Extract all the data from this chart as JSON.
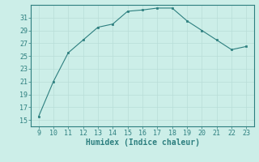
{
  "x": [
    9,
    10,
    11,
    12,
    13,
    14,
    15,
    16,
    17,
    18,
    19,
    20,
    21,
    22,
    23
  ],
  "y": [
    15.5,
    21.0,
    25.5,
    27.5,
    29.5,
    30.0,
    32.0,
    32.2,
    32.5,
    32.5,
    30.5,
    29.0,
    27.5,
    26.0,
    26.5
  ],
  "line_color": "#2d7f7f",
  "marker": "s",
  "marker_size": 2,
  "background_color": "#cceee8",
  "grid_color": "#b8ddd8",
  "xlabel": "Humidex (Indice chaleur)",
  "xlabel_fontsize": 7,
  "tick_fontsize": 6,
  "xlim": [
    8.5,
    23.5
  ],
  "ylim": [
    14,
    33
  ],
  "yticks": [
    15,
    17,
    19,
    21,
    23,
    25,
    27,
    29,
    31
  ],
  "xticks": [
    9,
    10,
    11,
    12,
    13,
    14,
    15,
    16,
    17,
    18,
    19,
    20,
    21,
    22,
    23
  ],
  "tick_color": "#2d7f7f",
  "label_color": "#2d7f7f",
  "spine_color": "#2d7f7f"
}
